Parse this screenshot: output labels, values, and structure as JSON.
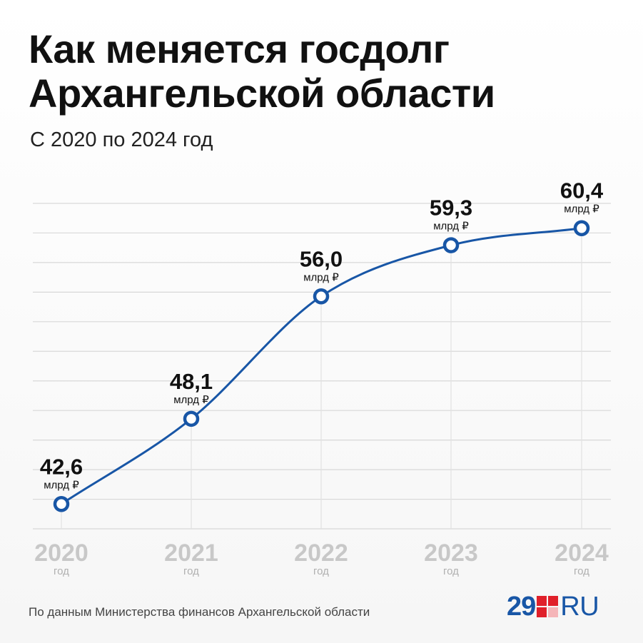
{
  "header": {
    "title_line1": "Как меняется госдолг",
    "title_line2": "Архангельской области",
    "subtitle": "С 2020 по 2024 год"
  },
  "footer": {
    "source": "По данным Министерства финансов Архангельской области",
    "logo_number": "29",
    "logo_suffix": "RU"
  },
  "colors": {
    "line": "#1856a6",
    "grid": "#d8d8d8",
    "axis_label": "#c8c8c8",
    "logo_red": "#e0202a"
  },
  "chart_data": {
    "type": "line",
    "categories": [
      "2020",
      "2021",
      "2022",
      "2023",
      "2024"
    ],
    "x_sublabel": "год",
    "values": [
      42.6,
      48.1,
      56.0,
      59.3,
      60.4
    ],
    "value_labels": [
      "42,6",
      "48,1",
      "56,0",
      "59,3",
      "60,4"
    ],
    "unit": "млрд ₽",
    "ylim": [
      41,
      62
    ],
    "grid": true,
    "smooth": true
  }
}
